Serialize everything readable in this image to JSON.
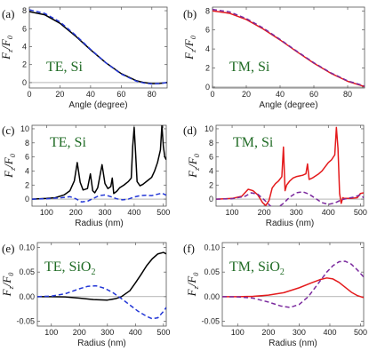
{
  "colors": {
    "te": "#000000",
    "tm": "#e41a1c",
    "te_alt": "#2236d6",
    "tm_alt": "#7b2a9e",
    "label": "#1f6b24"
  },
  "ylabel": {
    "main": "F",
    "sub1": "z",
    "sep": "/",
    "main2": "F",
    "sub2": "0"
  },
  "chart_data": [
    {
      "type": "line",
      "panel": "(a)",
      "inner_label": "TE, Si",
      "inner_sub": "",
      "xlabel": "Angle (degree)",
      "xlim": [
        0,
        90
      ],
      "ylim": [
        -0.6,
        8.4
      ],
      "xticks": [
        0,
        20,
        40,
        60,
        80
      ],
      "yticks": [
        0,
        2,
        4,
        6,
        8
      ],
      "series": [
        {
          "style": "solid",
          "color": "#000000",
          "x": [
            0,
            10,
            20,
            30,
            40,
            50,
            60,
            70,
            75,
            80,
            85,
            90
          ],
          "y": [
            7.9,
            7.55,
            6.6,
            5.2,
            3.65,
            2.2,
            1.0,
            0.2,
            0.0,
            -0.12,
            -0.1,
            0.0
          ]
        },
        {
          "style": "dashed",
          "color": "#2236d6",
          "x": [
            0,
            10,
            20,
            30,
            40,
            50,
            60,
            70,
            75,
            80,
            85,
            90
          ],
          "y": [
            8.1,
            7.7,
            6.75,
            5.3,
            3.7,
            2.2,
            0.95,
            0.15,
            -0.05,
            -0.15,
            -0.1,
            0.0
          ]
        }
      ]
    },
    {
      "type": "line",
      "panel": "(b)",
      "inner_label": "TM, Si",
      "inner_sub": "",
      "xlabel": "Angle (degree)",
      "xlim": [
        0,
        90
      ],
      "ylim": [
        -0.1,
        8.4
      ],
      "xticks": [
        0,
        20,
        40,
        60,
        80
      ],
      "yticks": [
        0,
        2,
        4,
        6,
        8
      ],
      "series": [
        {
          "style": "solid",
          "color": "#e41a1c",
          "x": [
            0,
            10,
            20,
            30,
            40,
            50,
            60,
            70,
            80,
            90
          ],
          "y": [
            8.0,
            7.75,
            7.1,
            6.1,
            4.95,
            3.7,
            2.5,
            1.45,
            0.6,
            0.05
          ]
        },
        {
          "style": "dashed",
          "color": "#7b2a9e",
          "x": [
            0,
            10,
            20,
            30,
            40,
            50,
            60,
            70,
            80,
            90
          ],
          "y": [
            8.15,
            7.9,
            7.2,
            6.2,
            5.0,
            3.75,
            2.55,
            1.5,
            0.65,
            0.1
          ]
        }
      ]
    },
    {
      "type": "line",
      "panel": "(c)",
      "inner_label": "TE, Si",
      "inner_sub": "",
      "xlabel": "Radius (nm)",
      "xlim": [
        50,
        510
      ],
      "ylim": [
        -1,
        10.5
      ],
      "xticks": [
        100,
        200,
        300,
        400,
        500
      ],
      "yticks": [
        0,
        2,
        4,
        6,
        8,
        10
      ],
      "series": [
        {
          "style": "solid",
          "color": "#000000",
          "x": [
            50,
            100,
            130,
            160,
            180,
            195,
            205,
            215,
            225,
            240,
            250,
            258,
            265,
            275,
            290,
            300,
            310,
            320,
            325,
            330,
            340,
            350,
            365,
            380,
            390,
            395,
            400,
            405,
            410,
            420,
            430,
            445,
            460,
            470,
            480,
            490,
            495,
            500,
            505,
            510
          ],
          "y": [
            0,
            0.1,
            0.2,
            0.6,
            1.2,
            2.6,
            5.2,
            2.4,
            1.3,
            1.5,
            3.6,
            1.2,
            0.9,
            1.6,
            4.9,
            2.2,
            1.5,
            1.8,
            3.0,
            0.8,
            1.1,
            1.6,
            2.0,
            2.5,
            3.0,
            7.5,
            10.2,
            6.5,
            2.5,
            1.9,
            2.1,
            2.6,
            3.1,
            4.0,
            5.2,
            7.0,
            10.5,
            7.5,
            6.0,
            5.6
          ]
        },
        {
          "style": "dashed",
          "color": "#2236d6",
          "x": [
            50,
            100,
            150,
            180,
            200,
            220,
            240,
            260,
            280,
            300,
            320,
            340,
            360,
            380,
            400,
            420,
            440,
            460,
            480,
            495,
            510
          ],
          "y": [
            0,
            0.05,
            0.2,
            0.35,
            0.05,
            -0.4,
            -0.3,
            0.1,
            0.5,
            0.6,
            0.35,
            0.05,
            -0.1,
            0.0,
            0.3,
            0.5,
            0.55,
            0.5,
            0.7,
            0.85,
            0.55
          ]
        }
      ]
    },
    {
      "type": "line",
      "panel": "(d)",
      "inner_label": "TM, Si",
      "inner_sub": "",
      "xlabel": "Radius (nm)",
      "xlim": [
        50,
        510
      ],
      "ylim": [
        -1,
        10.5
      ],
      "xticks": [
        100,
        200,
        300,
        400,
        500
      ],
      "yticks": [
        0,
        2,
        4,
        6,
        8,
        10
      ],
      "series": [
        {
          "style": "solid",
          "color": "#e41a1c",
          "x": [
            50,
            100,
            130,
            150,
            165,
            180,
            195,
            205,
            215,
            225,
            235,
            245,
            255,
            260,
            265,
            270,
            280,
            290,
            300,
            310,
            320,
            330,
            335,
            340,
            350,
            360,
            370,
            380,
            390,
            400,
            410,
            420,
            425,
            430,
            435,
            440,
            445,
            450,
            460,
            470,
            480,
            490,
            500,
            510
          ],
          "y": [
            0,
            0.1,
            0.4,
            1.4,
            1.2,
            0.6,
            -0.5,
            -0.9,
            -0.2,
            1.6,
            2.2,
            2.6,
            3.2,
            7.4,
            1.2,
            2.0,
            2.6,
            3.0,
            3.2,
            3.3,
            3.4,
            3.6,
            5.0,
            2.8,
            3.0,
            3.3,
            3.6,
            4.0,
            4.6,
            5.2,
            5.6,
            6.3,
            10.2,
            7.2,
            0.8,
            -0.6,
            0.2,
            0.1,
            0.1,
            0.1,
            0.15,
            0.2,
            0.8,
            0.9
          ]
        },
        {
          "style": "dashed",
          "color": "#7b2a9e",
          "x": [
            50,
            100,
            140,
            160,
            180,
            200,
            220,
            240,
            260,
            280,
            300,
            320,
            340,
            360,
            380,
            400,
            420,
            440,
            460,
            480,
            500,
            510
          ],
          "y": [
            0,
            0.05,
            0.4,
            0.9,
            0.7,
            -0.1,
            -1.0,
            -1.3,
            -0.6,
            0.3,
            0.9,
            1.05,
            0.7,
            0.1,
            -0.5,
            -0.75,
            -0.55,
            -0.1,
            0.1,
            0.3,
            0.6,
            0.2
          ]
        }
      ]
    },
    {
      "type": "line",
      "panel": "(e)",
      "inner_label": "TE, SiO",
      "inner_sub": "2",
      "xlabel": "Radius (nm)",
      "xlim": [
        50,
        510
      ],
      "ylim": [
        -0.06,
        0.11
      ],
      "xticks": [
        100,
        200,
        300,
        400,
        500
      ],
      "yticks": [
        -0.05,
        0.0,
        0.05,
        0.1
      ],
      "ytick_labels": [
        "-0.05",
        "0.00",
        "0.05",
        "0.10"
      ],
      "series": [
        {
          "style": "solid",
          "color": "#000000",
          "x": [
            50,
            100,
            150,
            200,
            250,
            300,
            330,
            350,
            380,
            400,
            420,
            440,
            460,
            480,
            500,
            510
          ],
          "y": [
            0,
            0,
            -0.0005,
            -0.003,
            -0.006,
            -0.007,
            -0.004,
            0.0,
            0.012,
            0.028,
            0.045,
            0.063,
            0.077,
            0.087,
            0.09,
            0.087
          ]
        },
        {
          "style": "dashed",
          "color": "#2236d6",
          "x": [
            50,
            100,
            150,
            200,
            230,
            260,
            290,
            320,
            350,
            380,
            410,
            440,
            460,
            480,
            500,
            510
          ],
          "y": [
            0,
            0.001,
            0.006,
            0.016,
            0.021,
            0.022,
            0.017,
            0.008,
            -0.004,
            -0.017,
            -0.03,
            -0.04,
            -0.045,
            -0.043,
            -0.03,
            -0.022
          ]
        }
      ]
    },
    {
      "type": "line",
      "panel": "(f)",
      "inner_label": "TM, SiO",
      "inner_sub": "2",
      "xlabel": "Radius (nm)",
      "xlim": [
        50,
        510
      ],
      "ylim": [
        -0.06,
        0.11
      ],
      "xticks": [
        100,
        200,
        300,
        400,
        500
      ],
      "yticks": [
        -0.05,
        0.0,
        0.05,
        0.1
      ],
      "ytick_labels": [
        "-0.05",
        "0.00",
        "0.05",
        "0.10"
      ],
      "series": [
        {
          "style": "solid",
          "color": "#e41a1c",
          "x": [
            50,
            100,
            150,
            200,
            250,
            300,
            340,
            370,
            390,
            410,
            430,
            450,
            470,
            490,
            510
          ],
          "y": [
            0,
            0,
            0.0005,
            0.003,
            0.008,
            0.018,
            0.028,
            0.035,
            0.038,
            0.036,
            0.029,
            0.019,
            0.009,
            0.002,
            -0.002
          ]
        },
        {
          "style": "dashed",
          "color": "#7b2a9e",
          "x": [
            50,
            100,
            150,
            200,
            240,
            270,
            300,
            330,
            360,
            390,
            410,
            430,
            450,
            470,
            490,
            510
          ],
          "y": [
            0,
            -0.0005,
            -0.003,
            -0.011,
            -0.019,
            -0.022,
            -0.016,
            0.0,
            0.025,
            0.05,
            0.063,
            0.071,
            0.072,
            0.066,
            0.054,
            0.04
          ]
        }
      ]
    }
  ]
}
